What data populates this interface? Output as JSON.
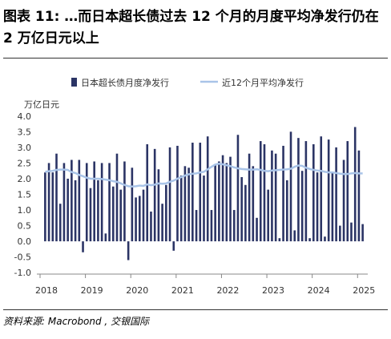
{
  "title": "图表 11: …而日本超长债过去 12 个月的月度平均净发行仍在 2 万亿日元以上",
  "source": "资料来源: Macrobond , 交银国际",
  "colors": {
    "bar": "#2b3465",
    "line": "#a9c4e8",
    "axis": "#888888",
    "text": "#333333"
  },
  "chart_data": {
    "type": "bar",
    "ylabel": "万亿日元",
    "ylim": [
      -1.2,
      4.2
    ],
    "yticks": [
      "-1.0",
      "-0.5",
      "0.0",
      "0.5",
      "1.0",
      "1.5",
      "2.0",
      "2.5",
      "3.0",
      "3.5",
      "4.0"
    ],
    "xticks": [
      "2018",
      "2019",
      "2020",
      "2021",
      "2022",
      "2023",
      "2024",
      "2025"
    ],
    "grid": false,
    "legend_position": "top",
    "series": [
      {
        "name": "日本超长债月度净发行",
        "type": "bar",
        "values": [
          2.2,
          2.5,
          2.2,
          2.8,
          1.2,
          2.5,
          2.0,
          2.6,
          1.95,
          2.6,
          -0.35,
          2.5,
          1.7,
          2.55,
          1.95,
          2.5,
          0.25,
          2.5,
          1.75,
          2.8,
          1.65,
          2.55,
          -0.6,
          2.35,
          1.4,
          1.45,
          1.65,
          3.1,
          0.95,
          2.95,
          2.3,
          1.2,
          1.8,
          3.0,
          -0.3,
          3.05,
          2.1,
          2.4,
          2.35,
          3.15,
          1.0,
          3.15,
          2.1,
          3.35,
          1.0,
          2.45,
          2.55,
          2.75,
          2.5,
          2.7,
          1.0,
          3.4,
          2.05,
          1.8,
          2.8,
          2.4,
          0.75,
          3.2,
          3.1,
          1.65,
          2.9,
          2.8,
          0.1,
          3.05,
          1.95,
          3.5,
          0.35,
          3.3,
          2.25,
          3.2,
          0.1,
          3.1,
          2.2,
          3.35,
          0.15,
          3.25,
          2.2,
          3.0,
          0.5,
          2.6,
          3.2,
          0.6,
          3.65,
          2.9,
          0.55
        ]
      },
      {
        "name": "近12个月平均净发行",
        "type": "line",
        "values": [
          2.22,
          2.24,
          2.25,
          2.28,
          2.29,
          2.29,
          2.28,
          2.21,
          2.18,
          2.12,
          2.08,
          2.03,
          2.0,
          2.0,
          2.0,
          1.99,
          1.97,
          1.95,
          1.92,
          1.9,
          1.85,
          1.8,
          1.76,
          1.75,
          1.76,
          1.78,
          1.77,
          1.82,
          1.79,
          1.81,
          1.85,
          1.84,
          1.85,
          1.9,
          1.94,
          2.0,
          2.05,
          2.1,
          2.14,
          2.16,
          2.17,
          2.2,
          2.22,
          2.3,
          2.38,
          2.45,
          2.48,
          2.46,
          2.43,
          2.4,
          2.36,
          2.33,
          2.31,
          2.3,
          2.29,
          2.29,
          2.3,
          2.28,
          2.25,
          2.24,
          2.26,
          2.27,
          2.28,
          2.29,
          2.3,
          2.32,
          2.38,
          2.42,
          2.41,
          2.35,
          2.31,
          2.28,
          2.26,
          2.25,
          2.22,
          2.2,
          2.2,
          2.18,
          2.16,
          2.15,
          2.15,
          2.17,
          2.18,
          2.17,
          2.17
        ]
      }
    ]
  }
}
